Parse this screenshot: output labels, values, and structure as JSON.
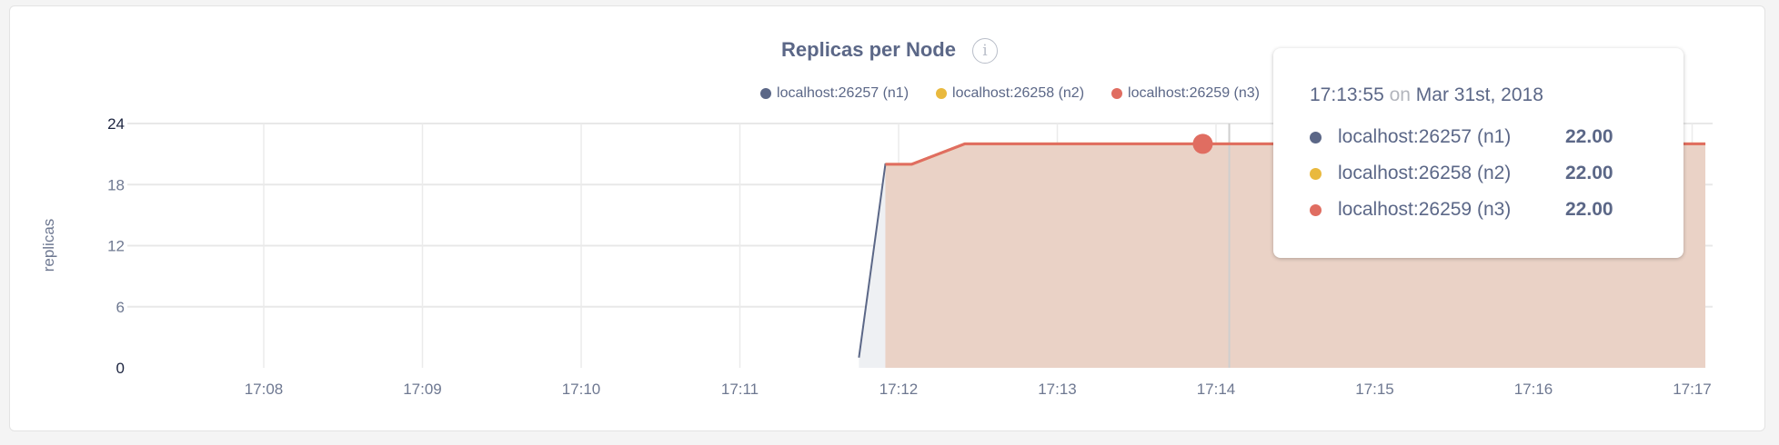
{
  "chart_data": {
    "type": "area",
    "title": "Replicas per Node",
    "ylabel": "replicas",
    "xlabel": "",
    "ylim": [
      0,
      24
    ],
    "yticks": [
      "0",
      "6",
      "12",
      "18",
      "24"
    ],
    "xlim": [
      "17:07:10",
      "17:17:10"
    ],
    "xticks": [
      "17:08",
      "17:09",
      "17:10",
      "17:11",
      "17:12",
      "17:13",
      "17:14",
      "17:15",
      "17:16",
      "17:17"
    ],
    "grid": true,
    "legend_position": "top-right",
    "series": [
      {
        "name": "localhost:26257 (n1)",
        "color": "#5b6787",
        "points": [
          [
            "17:11:45",
            1
          ],
          [
            "17:11:55",
            20
          ],
          [
            "17:12:05",
            20
          ],
          [
            "17:12:25",
            22
          ],
          [
            "17:17:05",
            22
          ]
        ]
      },
      {
        "name": "localhost:26258 (n2)",
        "color": "#e9b93e",
        "points": [
          [
            "17:11:55",
            20
          ],
          [
            "17:12:05",
            20
          ],
          [
            "17:12:25",
            22
          ],
          [
            "17:17:05",
            22
          ]
        ]
      },
      {
        "name": "localhost:26259 (n3)",
        "color": "#e06d61",
        "points": [
          [
            "17:11:55",
            20
          ],
          [
            "17:12:05",
            20
          ],
          [
            "17:12:25",
            22
          ],
          [
            "17:17:05",
            22
          ]
        ]
      }
    ],
    "hover": {
      "time": "17:13:55",
      "on": "on",
      "date": "Mar 31st, 2018",
      "values": [
        "22.00",
        "22.00",
        "22.00"
      ]
    }
  },
  "info_icon": "i"
}
